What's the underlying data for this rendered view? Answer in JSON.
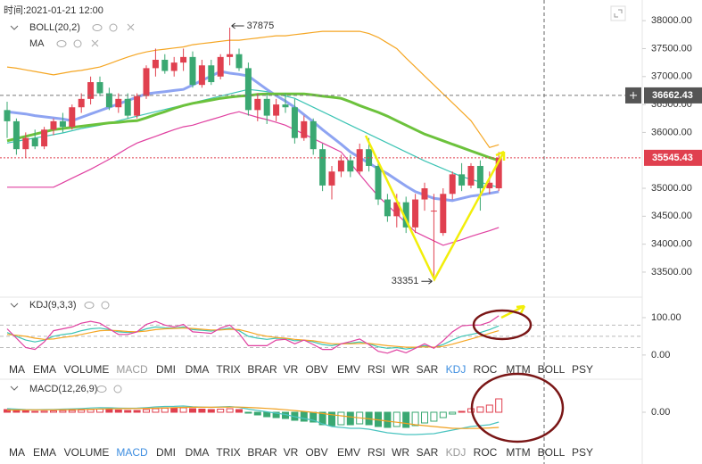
{
  "header": {
    "time_label": "时间:2021-01-21 12:00"
  },
  "chart_data": [
    {
      "type": "candlestick",
      "up_color": "#e0404f",
      "down_color": "#3aa872",
      "ylim": [
        33100,
        38290
      ],
      "yticks": [
        {
          "value": 38000,
          "label": "38000.00"
        },
        {
          "value": 37500,
          "label": "37500.00"
        },
        {
          "value": 37000,
          "label": "37000.00"
        },
        {
          "value": 36500,
          "label": "36500.00"
        },
        {
          "value": 36000,
          "label": "36000.00"
        },
        {
          "value": 35000,
          "label": "35000.00"
        },
        {
          "value": 34500,
          "label": "34500.00"
        },
        {
          "value": 34000,
          "label": "34000.00"
        },
        {
          "value": 33500,
          "label": "33500.00"
        }
      ],
      "crosshair_price": 36662.43,
      "open": [
        36400,
        36200,
        35700,
        35900,
        35750,
        36050,
        36200,
        36100,
        36450,
        36600,
        36900,
        36700,
        36450,
        36600,
        36300,
        36650,
        37150,
        37300,
        37100,
        37250,
        37350,
        36850,
        37200,
        37000,
        37350,
        37400,
        37150,
        36400,
        36600,
        36300,
        36500,
        36450,
        35900,
        36200,
        35700,
        35050,
        35300,
        35500,
        35300,
        35700,
        35400,
        34800,
        34500,
        34750,
        34300,
        34800,
        34600,
        34200,
        34900,
        35250,
        35050,
        35400,
        35000,
        35000
      ],
      "high": [
        36550,
        36250,
        36000,
        36050,
        36100,
        36250,
        36350,
        36500,
        36700,
        37000,
        37000,
        36800,
        36700,
        36700,
        36700,
        37200,
        37500,
        37400,
        37350,
        37500,
        37450,
        37300,
        37300,
        37400,
        37875,
        37500,
        37250,
        36700,
        36700,
        36600,
        36700,
        36600,
        36300,
        36250,
        35800,
        35400,
        35600,
        35600,
        35800,
        35900,
        35500,
        34900,
        34900,
        34850,
        34900,
        35100,
        34900,
        35000,
        35300,
        35450,
        35450,
        35500,
        35300,
        35650
      ],
      "low": [
        35900,
        35600,
        35550,
        35700,
        35700,
        35950,
        36000,
        36050,
        36350,
        36500,
        36650,
        36400,
        36350,
        36250,
        36250,
        36600,
        37000,
        37050,
        37000,
        37100,
        36800,
        36800,
        36850,
        36950,
        37200,
        37100,
        36300,
        36200,
        36150,
        36200,
        36350,
        35800,
        35850,
        35600,
        34950,
        34800,
        35200,
        35200,
        35250,
        35300,
        34700,
        34400,
        34300,
        34200,
        34200,
        34600,
        33351,
        34150,
        34800,
        34950,
        35000,
        34600,
        34900,
        34950
      ],
      "close": [
        36200,
        35700,
        35900,
        35750,
        36050,
        36200,
        36100,
        36450,
        36600,
        36900,
        36700,
        36450,
        36600,
        36300,
        36650,
        37150,
        37300,
        37100,
        37250,
        37350,
        36850,
        37200,
        36900,
        37350,
        37400,
        37150,
        36400,
        36600,
        36300,
        36500,
        36450,
        35900,
        36200,
        35700,
        35050,
        35300,
        35500,
        35300,
        35700,
        35400,
        34800,
        34500,
        34750,
        34300,
        34800,
        35000,
        34600,
        34900,
        35250,
        35050,
        35400,
        35000,
        35100,
        35545.43
      ],
      "overlays": [
        {
          "name": "BOLL(20,2)",
          "lines": [
            {
              "color": "#f5a623",
              "values": [
                37170,
                37150,
                37120,
                37090,
                37060,
                37030,
                37060,
                37090,
                37110,
                37140,
                37170,
                37230,
                37290,
                37350,
                37400,
                37440,
                37470,
                37490,
                37510,
                37530,
                37570,
                37590,
                37610,
                37630,
                37650,
                37650,
                37670,
                37690,
                37710,
                37730,
                37730,
                37750,
                37770,
                37790,
                37810,
                37810,
                37810,
                37810,
                37810,
                37770,
                37700,
                37600,
                37500,
                37330,
                37170,
                37010,
                36850,
                36690,
                36530,
                36370,
                36210,
                35970,
                35730,
                35780
              ]
            },
            {
              "color": "#3cc4b4",
              "values": [
                35810,
                35840,
                35870,
                35900,
                35930,
                35960,
                35990,
                36030,
                36070,
                36100,
                36130,
                36170,
                36210,
                36250,
                36290,
                36330,
                36370,
                36410,
                36450,
                36490,
                36530,
                36570,
                36610,
                36650,
                36690,
                36730,
                36770,
                36750,
                36730,
                36690,
                36650,
                36610,
                36530,
                36450,
                36370,
                36290,
                36210,
                36130,
                36050,
                35970,
                35890,
                35810,
                35730,
                35650,
                35570,
                35490,
                35420,
                35350,
                35280,
                35210,
                35160,
                35110,
                35060,
                35020
              ]
            },
            {
              "color": "#e040a0",
              "values": [
                35020,
                35020,
                35020,
                35020,
                35020,
                35020,
                35100,
                35180,
                35260,
                35340,
                35430,
                35520,
                35620,
                35720,
                35810,
                35870,
                35930,
                35990,
                36050,
                36100,
                36130,
                36180,
                36230,
                36280,
                36330,
                36370,
                36320,
                36270,
                36230,
                36180,
                36130,
                36050,
                35970,
                35890,
                35810,
                35730,
                35650,
                35450,
                35250,
                35050,
                34860,
                34700,
                34540,
                34380,
                34220,
                34140,
                34060,
                33980,
                34030,
                34080,
                34140,
                34190,
                34240,
                34300
              ]
            }
          ]
        },
        {
          "name": "MA",
          "lines": [
            {
              "color": "#8ea4f2",
              "width": 3,
              "values": [
                36370,
                36350,
                36330,
                36300,
                36280,
                36260,
                36240,
                36210,
                36270,
                36330,
                36390,
                36450,
                36510,
                36570,
                36630,
                36690,
                36710,
                36730,
                36750,
                36770,
                36850,
                36930,
                37010,
                37090,
                37060,
                37040,
                37010,
                36890,
                36770,
                36660,
                36560,
                36450,
                36320,
                36190,
                36050,
                35920,
                35790,
                35650,
                35550,
                35450,
                35350,
                35260,
                35150,
                35040,
                34940,
                34880,
                34820,
                34800,
                34780,
                34820,
                34860,
                34880,
                34910,
                34940
              ]
            },
            {
              "color": "#6cc23c",
              "width": 3,
              "values": [
                35850,
                35890,
                35930,
                35970,
                36010,
                36050,
                36070,
                36090,
                36110,
                36130,
                36150,
                36170,
                36180,
                36200,
                36210,
                36260,
                36320,
                36370,
                36430,
                36480,
                36520,
                36550,
                36580,
                36610,
                36630,
                36650,
                36660,
                36680,
                36690,
                36690,
                36690,
                36690,
                36690,
                36670,
                36650,
                36630,
                36610,
                36550,
                36480,
                36420,
                36360,
                36290,
                36210,
                36130,
                36050,
                35970,
                35910,
                35850,
                35790,
                35730,
                35670,
                35610,
                35550,
                35500
              ]
            }
          ]
        }
      ]
    },
    {
      "type": "line",
      "name": "KDJ(9,3,3)",
      "ylim": [
        -17,
        150
      ],
      "yticks": [
        {
          "value": 100,
          "label": "100.00"
        },
        {
          "value": 0,
          "label": "0.00"
        }
      ],
      "reference_lines": [
        80,
        50,
        20
      ],
      "series": [
        {
          "color": "#3cc4b4",
          "values": [
            60,
            50,
            40,
            35,
            40,
            50,
            55,
            58,
            65,
            70,
            72,
            68,
            62,
            60,
            62,
            70,
            75,
            73,
            72,
            75,
            68,
            66,
            64,
            68,
            72,
            65,
            50,
            45,
            42,
            45,
            44,
            38,
            40,
            35,
            28,
            25,
            30,
            32,
            35,
            30,
            22,
            18,
            20,
            16,
            20,
            25,
            20,
            28,
            40,
            50,
            55,
            60,
            68,
            78
          ]
        },
        {
          "color": "#f5a623",
          "values": [
            55,
            53,
            50,
            45,
            42,
            43,
            47,
            50,
            55,
            60,
            65,
            66,
            65,
            63,
            62,
            64,
            68,
            70,
            71,
            72,
            71,
            69,
            67,
            67,
            69,
            68,
            62,
            55,
            50,
            47,
            45,
            42,
            40,
            38,
            34,
            30,
            30,
            30,
            31,
            31,
            28,
            25,
            23,
            21,
            21,
            22,
            21,
            23,
            29,
            36,
            43,
            50,
            58,
            65
          ]
        },
        {
          "color": "#e040a0",
          "values": [
            70,
            45,
            20,
            15,
            35,
            65,
            70,
            75,
            85,
            90,
            85,
            70,
            55,
            55,
            62,
            82,
            90,
            80,
            75,
            82,
            62,
            60,
            58,
            72,
            80,
            58,
            25,
            25,
            25,
            40,
            42,
            30,
            40,
            28,
            15,
            15,
            30,
            36,
            43,
            28,
            10,
            5,
            14,
            6,
            18,
            30,
            18,
            38,
            62,
            78,
            80,
            80,
            88,
            105
          ]
        }
      ]
    },
    {
      "type": "macd",
      "name": "MACD(12,26,9)",
      "ylim": [
        -380,
        320
      ],
      "yticks": [
        {
          "value": 0,
          "label": "0.00"
        }
      ],
      "up_color": "#e0404f",
      "down_color": "#3aa872",
      "histogram": [
        30,
        25,
        15,
        10,
        12,
        15,
        18,
        20,
        25,
        30,
        35,
        30,
        25,
        20,
        20,
        30,
        40,
        45,
        45,
        50,
        40,
        35,
        30,
        35,
        40,
        30,
        -10,
        -30,
        -50,
        -60,
        -70,
        -90,
        -100,
        -110,
        -140,
        -150,
        -140,
        -140,
        -130,
        -140,
        -160,
        -170,
        -160,
        -170,
        -150,
        -120,
        -100,
        -60,
        -20,
        10,
        40,
        60,
        80,
        150
      ],
      "series": [
        {
          "color": "#4bc4c0",
          "values": [
            40,
            35,
            30,
            28,
            30,
            32,
            35,
            38,
            42,
            48,
            52,
            50,
            47,
            45,
            46,
            52,
            60,
            65,
            66,
            70,
            62,
            58,
            55,
            60,
            64,
            55,
            35,
            20,
            5,
            -10,
            -25,
            -50,
            -70,
            -90,
            -130,
            -160,
            -170,
            -180,
            -180,
            -190,
            -210,
            -230,
            -240,
            -250,
            -250,
            -245,
            -240,
            -220,
            -200,
            -180,
            -160,
            -150,
            -140,
            -110
          ]
        },
        {
          "color": "#f0a020",
          "values": [
            25,
            26,
            27,
            27,
            27,
            28,
            29,
            30,
            32,
            34,
            37,
            39,
            40,
            41,
            42,
            44,
            46,
            49,
            52,
            55,
            56,
            56,
            56,
            57,
            58,
            58,
            54,
            49,
            43,
            36,
            28,
            19,
            9,
            -1,
            -14,
            -28,
            -40,
            -52,
            -63,
            -74,
            -86,
            -100,
            -112,
            -125,
            -140,
            -150,
            -160,
            -170,
            -180,
            -182,
            -182,
            -180,
            -176,
            -170
          ]
        }
      ]
    }
  ],
  "indicator_tabs": [
    "MA",
    "EMA",
    "VOLUME",
    "MACD",
    "DMI",
    "DMA",
    "TRIX",
    "BRAR",
    "VR",
    "OBV",
    "EMV",
    "RSI",
    "WR",
    "SAR",
    "KDJ",
    "ROC",
    "MTM",
    "BOLL",
    "PSY"
  ]
}
